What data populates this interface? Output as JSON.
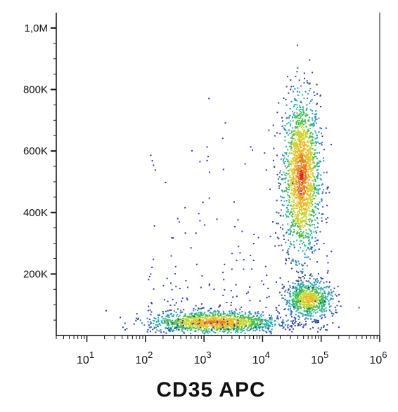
{
  "chart_data": {
    "type": "scatter",
    "style": "density dot plot (pseudocolor)",
    "title": "",
    "xlabel": "CD35 APC",
    "ylabel": "",
    "x_scale": "log",
    "xlim": [
      3,
      1000000
    ],
    "ylim": [
      0,
      1050000
    ],
    "grid": false,
    "legend": "none",
    "x_ticks": [
      {
        "value": 10,
        "base": "10",
        "exp": "1"
      },
      {
        "value": 100,
        "base": "10",
        "exp": "2"
      },
      {
        "value": 1000,
        "base": "10",
        "exp": "3"
      },
      {
        "value": 10000,
        "base": "10",
        "exp": "4"
      },
      {
        "value": 100000,
        "base": "10",
        "exp": "5"
      },
      {
        "value": 1000000,
        "base": "10",
        "exp": "6"
      }
    ],
    "y_ticks": [
      {
        "value": 200000,
        "label": "200K"
      },
      {
        "value": 400000,
        "label": "400K"
      },
      {
        "value": 600000,
        "label": "600K"
      },
      {
        "value": 800000,
        "label": "800K"
      },
      {
        "value": 1000000,
        "label": "1,0M"
      }
    ],
    "density_colors": [
      "#2b3f9e",
      "#2f7fc6",
      "#1fb3b0",
      "#3fbf4a",
      "#c9d52a",
      "#f3b51c",
      "#f07a1a",
      "#e0201c"
    ],
    "populations": [
      {
        "name_visible": false,
        "center_x": 45000,
        "center_y": 520000,
        "spread_log_x": 0.16,
        "spread_y": 130000,
        "relative_density": 1.0
      },
      {
        "name_visible": false,
        "center_x": 1500,
        "center_y": 45000,
        "spread_log_x": 0.55,
        "spread_y": 18000,
        "relative_density": 0.75
      },
      {
        "name_visible": false,
        "center_x": 60000,
        "center_y": 120000,
        "spread_log_x": 0.2,
        "spread_y": 30000,
        "relative_density": 0.4
      }
    ]
  }
}
